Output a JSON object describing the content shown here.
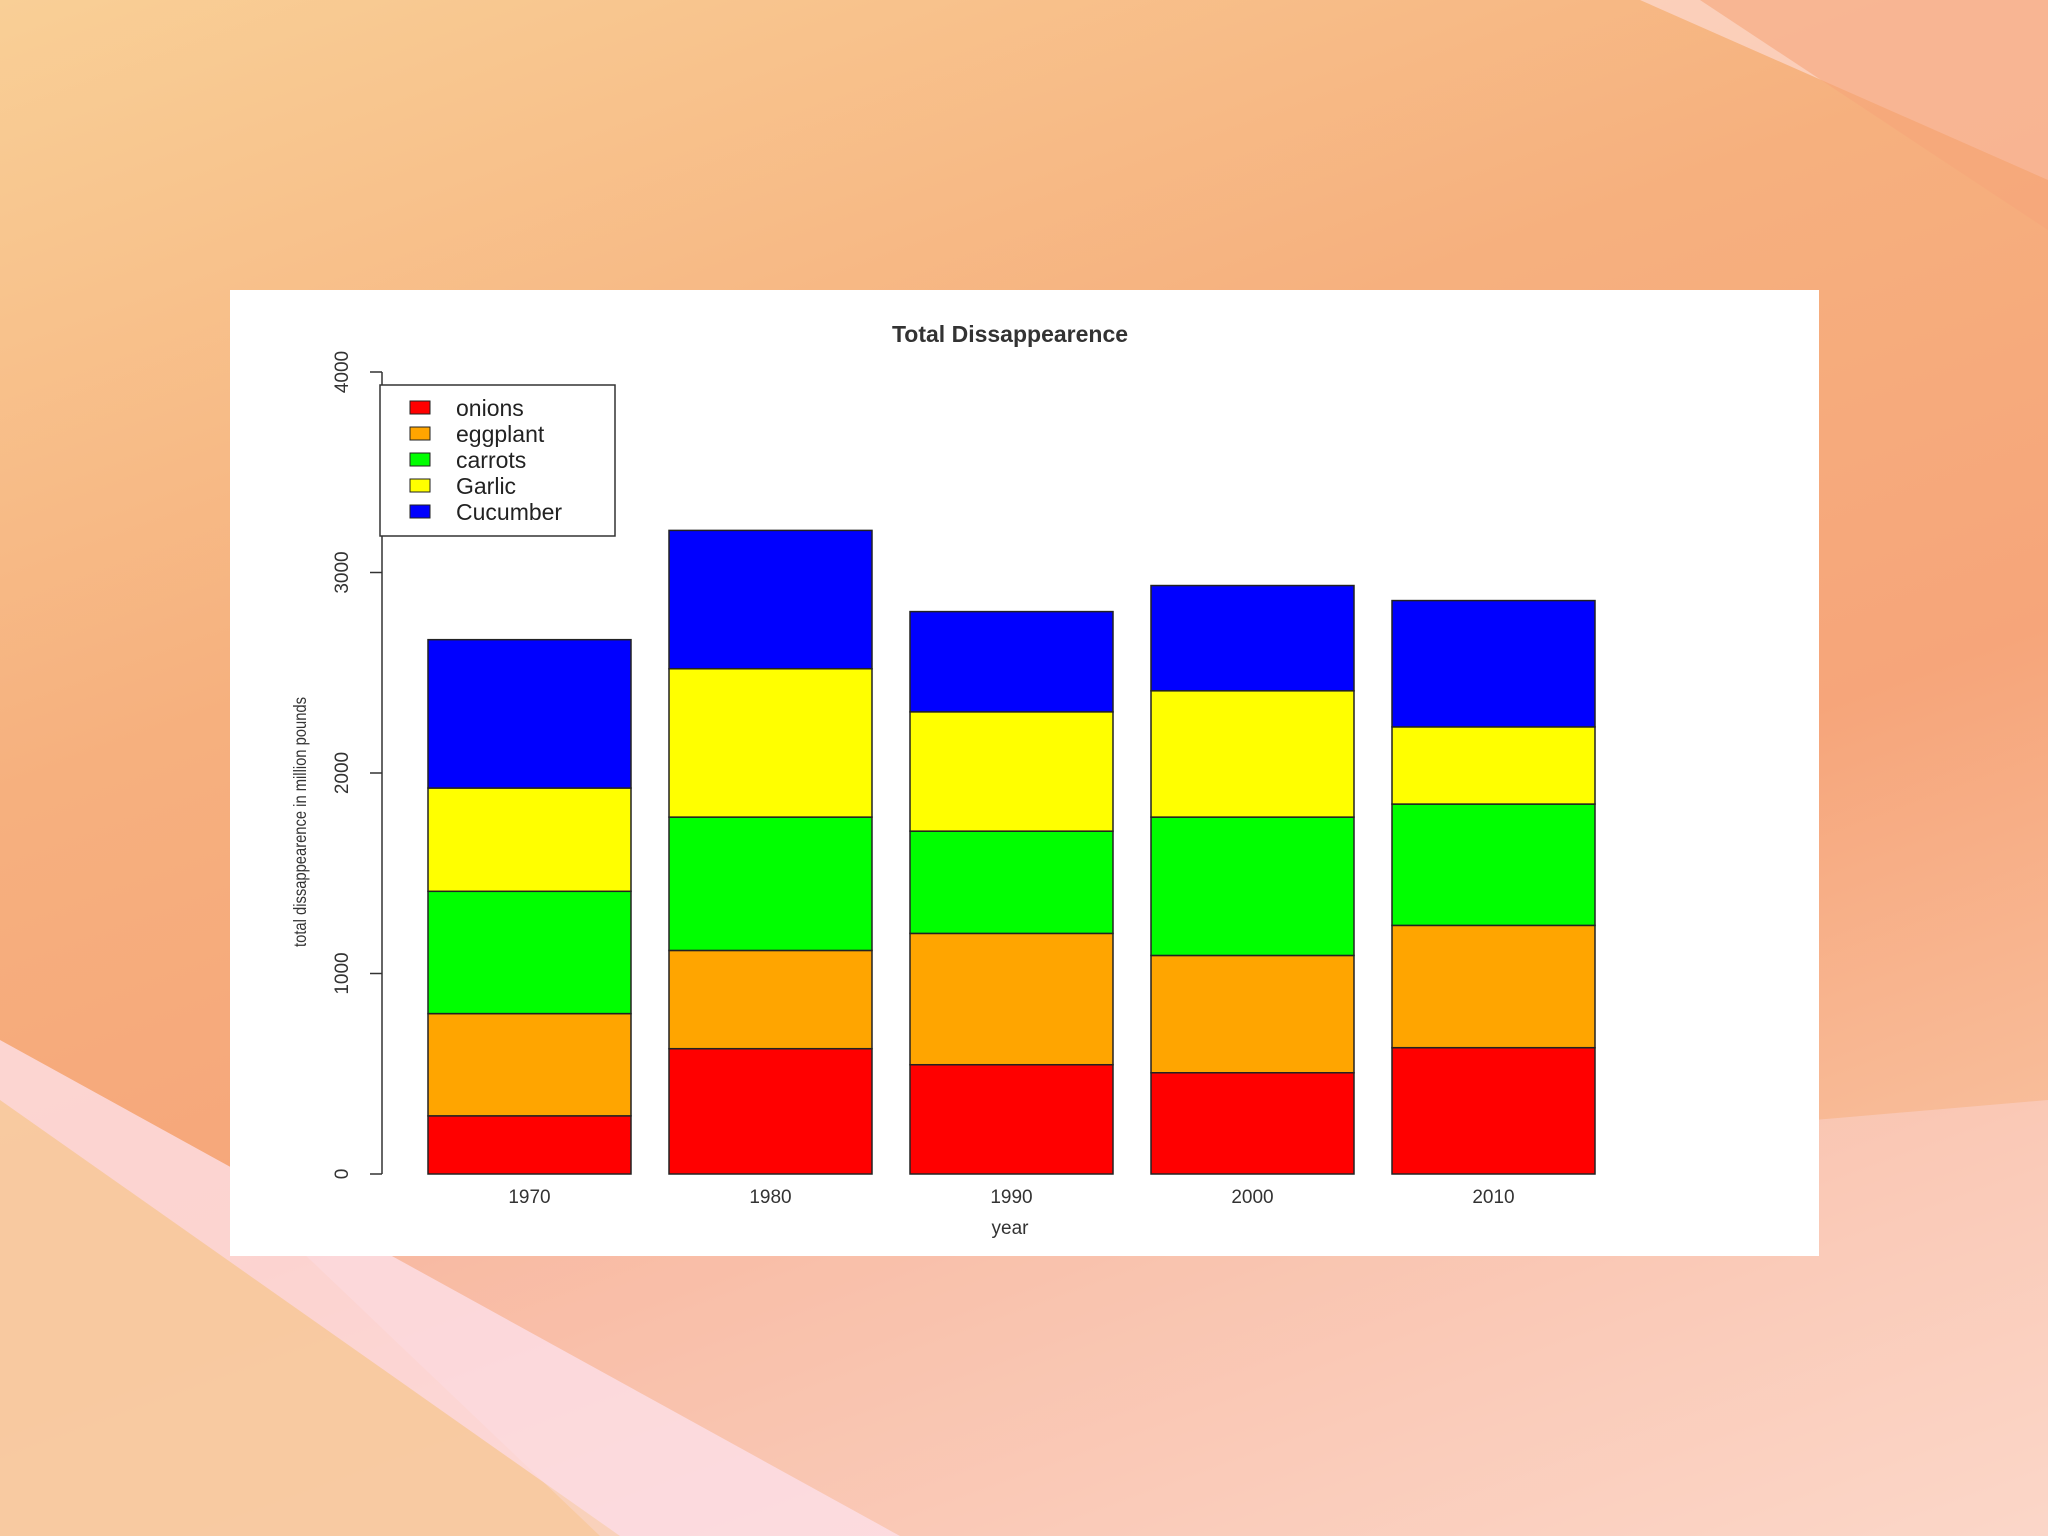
{
  "chart_data": {
    "type": "bar",
    "stacked": true,
    "title": "Total Dissappearence",
    "xlabel": "year",
    "ylabel": "total dissappearence in million pounds",
    "categories": [
      "1970",
      "1980",
      "1990",
      "2000",
      "2010"
    ],
    "ylim": [
      0,
      4000
    ],
    "yticks": [
      "0",
      "1000",
      "2000",
      "3000",
      "4000"
    ],
    "legend_position": "top-left",
    "series": [
      {
        "name": "onions",
        "color": "#ff0000",
        "values": [
          290,
          625,
          545,
          505,
          630
        ]
      },
      {
        "name": "eggplant",
        "color": "#ffa500",
        "values": [
          510,
          490,
          655,
          585,
          610
        ]
      },
      {
        "name": "carrots",
        "color": "#00ff00",
        "values": [
          610,
          665,
          510,
          690,
          605
        ]
      },
      {
        "name": "Garlic",
        "color": "#ffff00",
        "values": [
          515,
          740,
          595,
          630,
          385
        ]
      },
      {
        "name": "Cucumber",
        "color": "#0000ff",
        "values": [
          740,
          690,
          500,
          525,
          630
        ]
      }
    ]
  }
}
